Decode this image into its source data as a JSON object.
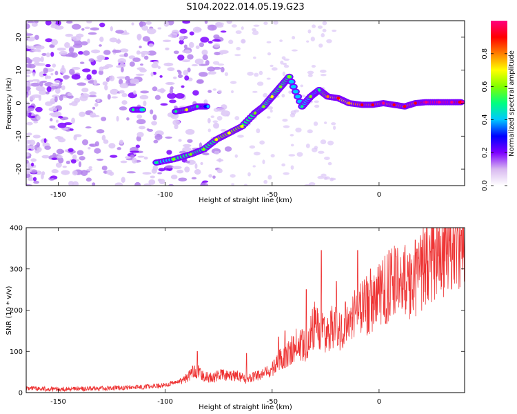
{
  "figure": {
    "title": "S104.2022.014.05.19.G23"
  },
  "chart_data": [
    {
      "type": "heatmap",
      "title": "S104.2022.014.05.19.G23",
      "xlabel": "Height of straight line (km)",
      "ylabel": "Frequency (Hz)",
      "xlim": [
        -165,
        40
      ],
      "ylim": [
        -25,
        25
      ],
      "xticks": [
        -150,
        -100,
        -50,
        0
      ],
      "yticks": [
        20,
        10,
        0,
        -10,
        -20
      ],
      "colorbar": {
        "label": "Normalized spectral amplitude",
        "range": [
          0,
          1
        ],
        "ticks": [
          "0.0",
          "0.2",
          "0.4",
          "0.6",
          "0.8"
        ],
        "colors": [
          "#ffffff",
          "#d8b8f0",
          "#7d00ff",
          "#0000ff",
          "#00c8ff",
          "#00ff80",
          "#80ff00",
          "#ffff00",
          "#ff8000",
          "#ff0000",
          "#ff0080"
        ]
      },
      "ridge": [
        {
          "x": -104,
          "f": -18,
          "a": 0.35
        },
        {
          "x": -96,
          "f": -17,
          "a": 0.45
        },
        {
          "x": -88,
          "f": -15.5,
          "a": 0.5
        },
        {
          "x": -82,
          "f": -14,
          "a": 0.45
        },
        {
          "x": -76,
          "f": -11,
          "a": 0.55
        },
        {
          "x": -70,
          "f": -9,
          "a": 0.6
        },
        {
          "x": -64,
          "f": -7,
          "a": 0.55
        },
        {
          "x": -58,
          "f": -3,
          "a": 0.45
        },
        {
          "x": -54,
          "f": -1,
          "a": 0.5
        },
        {
          "x": -50,
          "f": 2,
          "a": 0.55
        },
        {
          "x": -46,
          "f": 5,
          "a": 0.5
        },
        {
          "x": -42,
          "f": 8,
          "a": 0.45
        },
        {
          "x": -36,
          "f": -1,
          "a": 0.4
        },
        {
          "x": -32,
          "f": 2,
          "a": 0.45
        },
        {
          "x": -28,
          "f": 4,
          "a": 0.4
        },
        {
          "x": -24,
          "f": 2,
          "a": 0.65
        },
        {
          "x": -19,
          "f": 1.5,
          "a": 0.75
        },
        {
          "x": -14,
          "f": 0,
          "a": 0.7
        },
        {
          "x": -8,
          "f": -0.5,
          "a": 0.8
        },
        {
          "x": -3,
          "f": -0.5,
          "a": 0.8
        },
        {
          "x": 2,
          "f": 0,
          "a": 0.85
        },
        {
          "x": 7,
          "f": -0.5,
          "a": 0.8
        },
        {
          "x": 12,
          "f": -1,
          "a": 0.75
        },
        {
          "x": 17,
          "f": 0,
          "a": 0.8
        },
        {
          "x": 22,
          "f": 0.3,
          "a": 0.95
        },
        {
          "x": 28,
          "f": 0.3,
          "a": 0.95
        },
        {
          "x": 34,
          "f": 0.3,
          "a": 0.95
        },
        {
          "x": 39,
          "f": 0.3,
          "a": 0.9
        }
      ],
      "side_ridge": [
        {
          "x": -115,
          "f": -2,
          "a": 0.35
        },
        {
          "x": -110,
          "f": -2,
          "a": 0.4
        },
        {
          "x": -95,
          "f": -2.5,
          "a": 0.4
        },
        {
          "x": -90,
          "f": -2,
          "a": 0.55
        },
        {
          "x": -85,
          "f": -1,
          "a": 0.35
        },
        {
          "x": -80,
          "f": -1,
          "a": 0.3
        }
      ]
    },
    {
      "type": "line",
      "xlabel": "Height of straight line (km)",
      "ylabel": "SNR (10 * v/v)",
      "xlim": [
        -165,
        40
      ],
      "ylim": [
        0,
        400
      ],
      "xticks": [
        -150,
        -100,
        -50,
        0
      ],
      "yticks": [
        0,
        100,
        200,
        300,
        400
      ],
      "color": "#ee3333",
      "x": [
        -165,
        -150,
        -135,
        -120,
        -110,
        -100,
        -95,
        -90,
        -86,
        -82,
        -78,
        -74,
        -70,
        -66,
        -62,
        -58,
        -54,
        -50,
        -46,
        -42,
        -38,
        -34,
        -30,
        -26,
        -22,
        -18,
        -14,
        -10,
        -6,
        -2,
        2,
        6,
        10,
        14,
        18,
        22,
        26,
        30,
        34,
        38,
        40
      ],
      "y": [
        10,
        8,
        9,
        12,
        14,
        18,
        25,
        35,
        55,
        40,
        35,
        45,
        38,
        42,
        30,
        40,
        45,
        55,
        85,
        95,
        120,
        115,
        170,
        140,
        160,
        150,
        190,
        200,
        210,
        225,
        250,
        260,
        275,
        265,
        290,
        320,
        330,
        350,
        370,
        380,
        375
      ],
      "spikes": [
        {
          "x": -85,
          "y": 100
        },
        {
          "x": -62,
          "y": 95
        },
        {
          "x": -47,
          "y": 135
        },
        {
          "x": -44,
          "y": 150
        },
        {
          "x": -34,
          "y": 250
        },
        {
          "x": -27,
          "y": 345
        },
        {
          "x": -20,
          "y": 270
        },
        {
          "x": -10,
          "y": 345
        },
        {
          "x": -4,
          "y": 300
        },
        {
          "x": 8,
          "y": 330
        },
        {
          "x": 17,
          "y": 370
        }
      ]
    }
  ]
}
